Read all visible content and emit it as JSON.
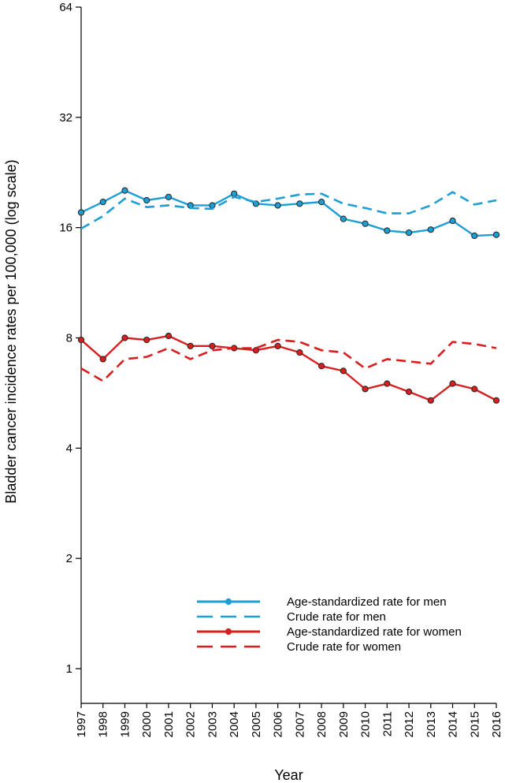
{
  "chart_data": {
    "type": "line",
    "title": "",
    "xlabel": "Year",
    "ylabel": "Bladder cancer incidence rates per 100,000 (log scale)",
    "yscale": "log2",
    "ylim": [
      0.75,
      64
    ],
    "yticks": [
      1,
      2,
      4,
      8,
      16,
      32,
      64
    ],
    "ytick_labels": [
      "1",
      "2",
      "4",
      "8",
      "16",
      "32",
      "64"
    ],
    "xlim": [
      1997,
      2016
    ],
    "x": [
      "1997",
      "1998",
      "1999",
      "2000",
      "2001",
      "2002",
      "2003",
      "2004",
      "2005",
      "2006",
      "2007",
      "2008",
      "2009",
      "2010",
      "2011",
      "2012",
      "2013",
      "2014",
      "2015",
      "2016"
    ],
    "legend_position": "bottom-right",
    "series": [
      {
        "name": "Age-standardized rate for men",
        "color": "#1e9fd4",
        "style": "solid",
        "markers": true,
        "values": [
          17.6,
          18.8,
          20.2,
          19.0,
          19.4,
          18.4,
          18.4,
          19.8,
          18.6,
          18.4,
          18.6,
          18.8,
          16.9,
          16.4,
          15.7,
          15.5,
          15.8,
          16.7,
          15.2,
          15.3
        ]
      },
      {
        "name": "Crude rate for men",
        "color": "#1e9fd4",
        "style": "dashed",
        "markers": false,
        "values": [
          15.9,
          17.2,
          19.2,
          18.2,
          18.4,
          18.1,
          18.0,
          19.4,
          18.8,
          19.2,
          19.7,
          19.8,
          18.6,
          18.1,
          17.5,
          17.5,
          18.4,
          20.0,
          18.5,
          19.0
        ]
      },
      {
        "name": "Age-standardized rate for women",
        "color": "#d81f1f",
        "style": "solid",
        "markers": true,
        "values": [
          7.9,
          7.0,
          8.0,
          7.9,
          8.1,
          7.6,
          7.6,
          7.5,
          7.4,
          7.6,
          7.3,
          6.7,
          6.5,
          5.8,
          6.0,
          5.7,
          5.4,
          6.0,
          5.8,
          5.4
        ]
      },
      {
        "name": "Crude rate for women",
        "color": "#d81f1f",
        "style": "dashed",
        "markers": false,
        "values": [
          6.6,
          6.1,
          7.0,
          7.1,
          7.5,
          7.0,
          7.4,
          7.5,
          7.5,
          7.9,
          7.8,
          7.4,
          7.3,
          6.6,
          7.0,
          6.9,
          6.8,
          7.8,
          7.7,
          7.5
        ]
      }
    ]
  }
}
